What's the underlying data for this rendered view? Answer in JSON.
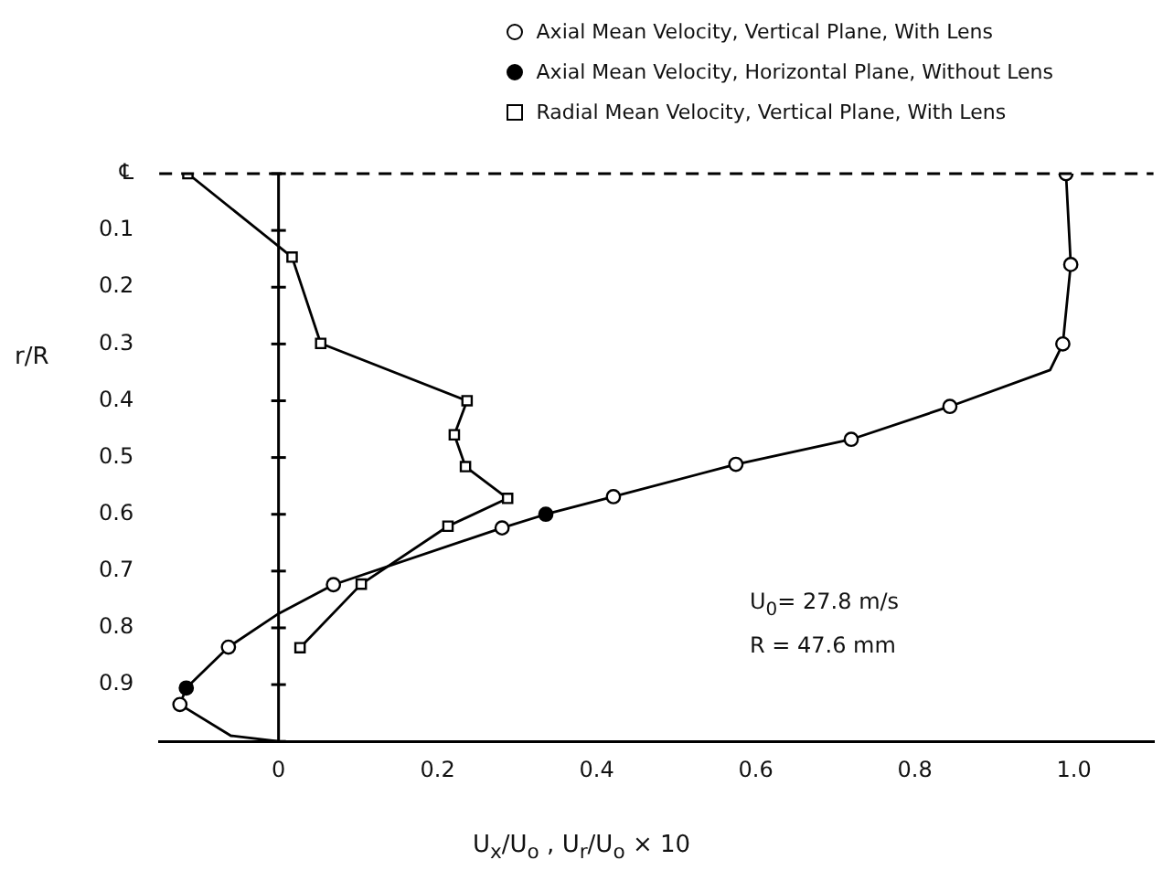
{
  "chart_data": {
    "type": "scatter",
    "xlabel": "U$_{x}$/U$_{o}$ ,  U$_{r}$/U$_{o}$  × 10",
    "ylabel": "r/R",
    "annotations": [
      "U$_{0}$= 27.8 m/s",
      "R = 47.6 mm"
    ],
    "xlim": [
      -0.15,
      1.1
    ],
    "ylim": [
      1.0,
      0
    ],
    "xticks": [
      0,
      0.2,
      0.4,
      0.6,
      0.8,
      {
        "value": 1,
        "label": "1.0"
      }
    ],
    "yticks": [
      {
        "value": 0,
        "label": "℄"
      },
      0.1,
      0.2,
      0.3,
      0.4,
      0.5,
      0.6,
      0.7,
      0.8,
      0.9,
      {
        "value": 1,
        "label": null
      }
    ],
    "grid": false,
    "legend": "top right",
    "ref_lines": [
      {
        "axis": "y",
        "value": 0,
        "label": null,
        "line_style": "dashed"
      },
      {
        "axis": "x",
        "value": 0,
        "label": null
      }
    ],
    "series": [
      {
        "name": "Axial Mean Velocity, Vertical Plane, With Lens",
        "type": "scatter",
        "marker": "circle",
        "color": "#ffffff",
        "x": [
          0.99,
          0.996,
          0.986,
          0.844,
          0.72,
          0.575,
          0.421,
          0.281,
          0.069,
          -0.063,
          -0.124
        ],
        "values": [
          0,
          0.16,
          0.3,
          0.41,
          0.468,
          0.512,
          0.569,
          0.624,
          0.724,
          0.834,
          0.935
        ]
      },
      {
        "name": "Axial Mean Velocity, Horizontal Plane, Without Lens",
        "type": "scatter",
        "marker": "circle",
        "color": "#000000",
        "x": [
          0.336,
          -0.116
        ],
        "values": [
          0.6,
          0.906
        ]
      },
      {
        "name": "Radial Mean Velocity, Vertical Plane, With Lens",
        "type": "line",
        "marker": "square",
        "color": "#ffffff",
        "x": [
          -0.114,
          0.017,
          0.053,
          0.237,
          0.221,
          0.235,
          0.288,
          0.213,
          0.104,
          0.027
        ],
        "values": [
          0,
          0.147,
          0.299,
          0.4,
          0.46,
          0.516,
          0.572,
          0.621,
          0.723,
          0.835
        ]
      },
      {
        "type": "line",
        "marker": "none",
        "color": "#000000",
        "x": [
          0.99,
          0.996,
          0.986,
          0.97,
          0.844,
          0.72,
          0.575,
          0.421,
          0.336,
          0.281,
          0.069,
          0,
          -0.063,
          -0.116,
          -0.124,
          -0.06,
          0
        ],
        "values": [
          0,
          0.16,
          0.3,
          0.346,
          0.41,
          0.468,
          0.512,
          0.569,
          0.6,
          0.624,
          0.724,
          0.775,
          0.834,
          0.906,
          0.935,
          0.99,
          1.0
        ]
      }
    ]
  }
}
